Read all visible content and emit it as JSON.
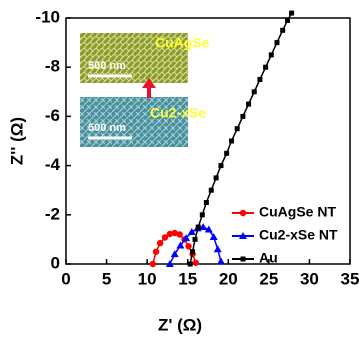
{
  "chart_data": {
    "type": "scatter",
    "xlabel": "Z' (Ω)",
    "ylabel": "Z'' (Ω)",
    "xlim": [
      0,
      35
    ],
    "xticks": [
      0,
      5,
      10,
      15,
      20,
      25,
      30,
      35
    ],
    "ylim": [
      0,
      -10
    ],
    "yticks": [
      0,
      -2,
      -4,
      -6,
      -8,
      -10
    ],
    "legend": "lower right",
    "insets": [
      {
        "label": "CuAgSe",
        "scale": "500 nm"
      },
      {
        "label": "Cu2-xSe",
        "scale": "500 nm"
      }
    ],
    "series": [
      {
        "name": "CuAgSe NT",
        "color": "#ff0000",
        "marker": "circle",
        "x": [
          10.7,
          11.1,
          11.6,
          12.2,
          12.8,
          13.4,
          14.0,
          14.6,
          15.1,
          15.6,
          16.0
        ],
        "values": [
          0,
          -0.5,
          -0.85,
          -1.08,
          -1.22,
          -1.26,
          -1.2,
          -1.0,
          -0.72,
          -0.4,
          -0.05
        ]
      },
      {
        "name": "Cu2-xSe NT",
        "color": "#0000ff",
        "marker": "triangle",
        "x": [
          12.8,
          13.4,
          14.1,
          14.8,
          15.5,
          16.2,
          16.9,
          17.6,
          18.2,
          18.7,
          19.1
        ],
        "values": [
          0,
          -0.4,
          -0.75,
          -1.05,
          -1.3,
          -1.45,
          -1.5,
          -1.4,
          -1.1,
          -0.6,
          -0.1
        ]
      },
      {
        "name": "Au",
        "color": "#000000",
        "marker": "square",
        "x": [
          15.3,
          15.6,
          15.9,
          16.3,
          16.8,
          17.3,
          17.9,
          18.5,
          19.1,
          19.8,
          20.4,
          21.1,
          21.8,
          22.5,
          23.2,
          23.9,
          24.6,
          25.3,
          26.0,
          26.7,
          27.3,
          27.8
        ],
        "values": [
          0,
          -0.5,
          -1.0,
          -1.5,
          -2.0,
          -2.5,
          -3.0,
          -3.5,
          -4.0,
          -4.5,
          -5.0,
          -5.5,
          -6.0,
          -6.5,
          -7.0,
          -7.5,
          -8.0,
          -8.5,
          -9.0,
          -9.5,
          -9.9,
          -10.2
        ]
      }
    ]
  }
}
